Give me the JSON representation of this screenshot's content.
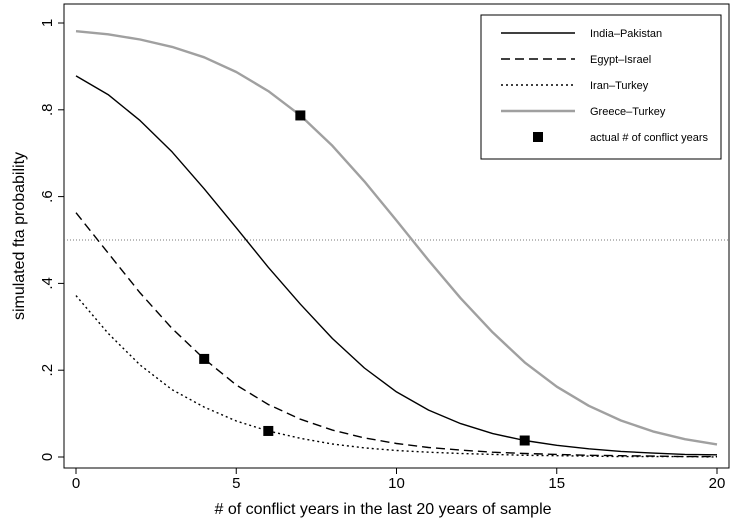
{
  "chart_data": {
    "type": "line",
    "xlabel": "# of conflict years in the last 20 years of sample",
    "ylabel": "simulated fta probability",
    "xlim": [
      0,
      20
    ],
    "ylim": [
      0,
      1
    ],
    "x_ticks": [
      0,
      5,
      10,
      15,
      20
    ],
    "x_tick_labels": [
      "0",
      "5",
      "10",
      "15",
      "20"
    ],
    "y_ticks": [
      0,
      0.2,
      0.4,
      0.6,
      0.8,
      1
    ],
    "y_tick_labels": [
      "0",
      ".2",
      ".4",
      ".6",
      ".8",
      "1"
    ],
    "grid": false,
    "reference_line": {
      "y": 0.5,
      "style": "dotted"
    },
    "legend_position": "top-right",
    "x": [
      0,
      1,
      2,
      3,
      4,
      5,
      6,
      7,
      8,
      9,
      10,
      11,
      12,
      13,
      14,
      15,
      16,
      17,
      18,
      19,
      20
    ],
    "series": [
      {
        "name": "India–Pakistan",
        "color": "#000000",
        "style": "solid",
        "values": [
          0.878,
          0.835,
          0.775,
          0.703,
          0.618,
          0.528,
          0.437,
          0.352,
          0.273,
          0.205,
          0.15,
          0.108,
          0.077,
          0.054,
          0.038,
          0.027,
          0.019,
          0.013,
          0.009,
          0.006,
          0.005
        ]
      },
      {
        "name": "Egypt–Israel",
        "color": "#000000",
        "style": "dashed",
        "values": [
          0.563,
          0.47,
          0.378,
          0.296,
          0.226,
          0.166,
          0.121,
          0.087,
          0.062,
          0.044,
          0.031,
          0.022,
          0.016,
          0.011,
          0.008,
          0.006,
          0.004,
          0.003,
          0.002,
          0.001,
          0.001
        ]
      },
      {
        "name": "Iran–Turkey",
        "color": "#000000",
        "style": "dotted",
        "values": [
          0.372,
          0.285,
          0.212,
          0.155,
          0.115,
          0.083,
          0.06,
          0.043,
          0.03,
          0.021,
          0.015,
          0.011,
          0.008,
          0.006,
          0.004,
          0.003,
          0.002,
          0.001,
          0.001,
          0.001,
          0.0
        ]
      },
      {
        "name": "Greece–Turkey",
        "color": "#a0a0a0",
        "style": "solid",
        "values": [
          0.981,
          0.974,
          0.962,
          0.945,
          0.921,
          0.887,
          0.843,
          0.787,
          0.717,
          0.635,
          0.545,
          0.453,
          0.366,
          0.287,
          0.218,
          0.162,
          0.118,
          0.084,
          0.059,
          0.041,
          0.029
        ]
      }
    ],
    "markers": {
      "name": "actual # of conflict years",
      "points": [
        {
          "x": 7,
          "y": 0.787
        },
        {
          "x": 4,
          "y": 0.226
        },
        {
          "x": 6,
          "y": 0.06
        },
        {
          "x": 14,
          "y": 0.038
        }
      ]
    }
  }
}
